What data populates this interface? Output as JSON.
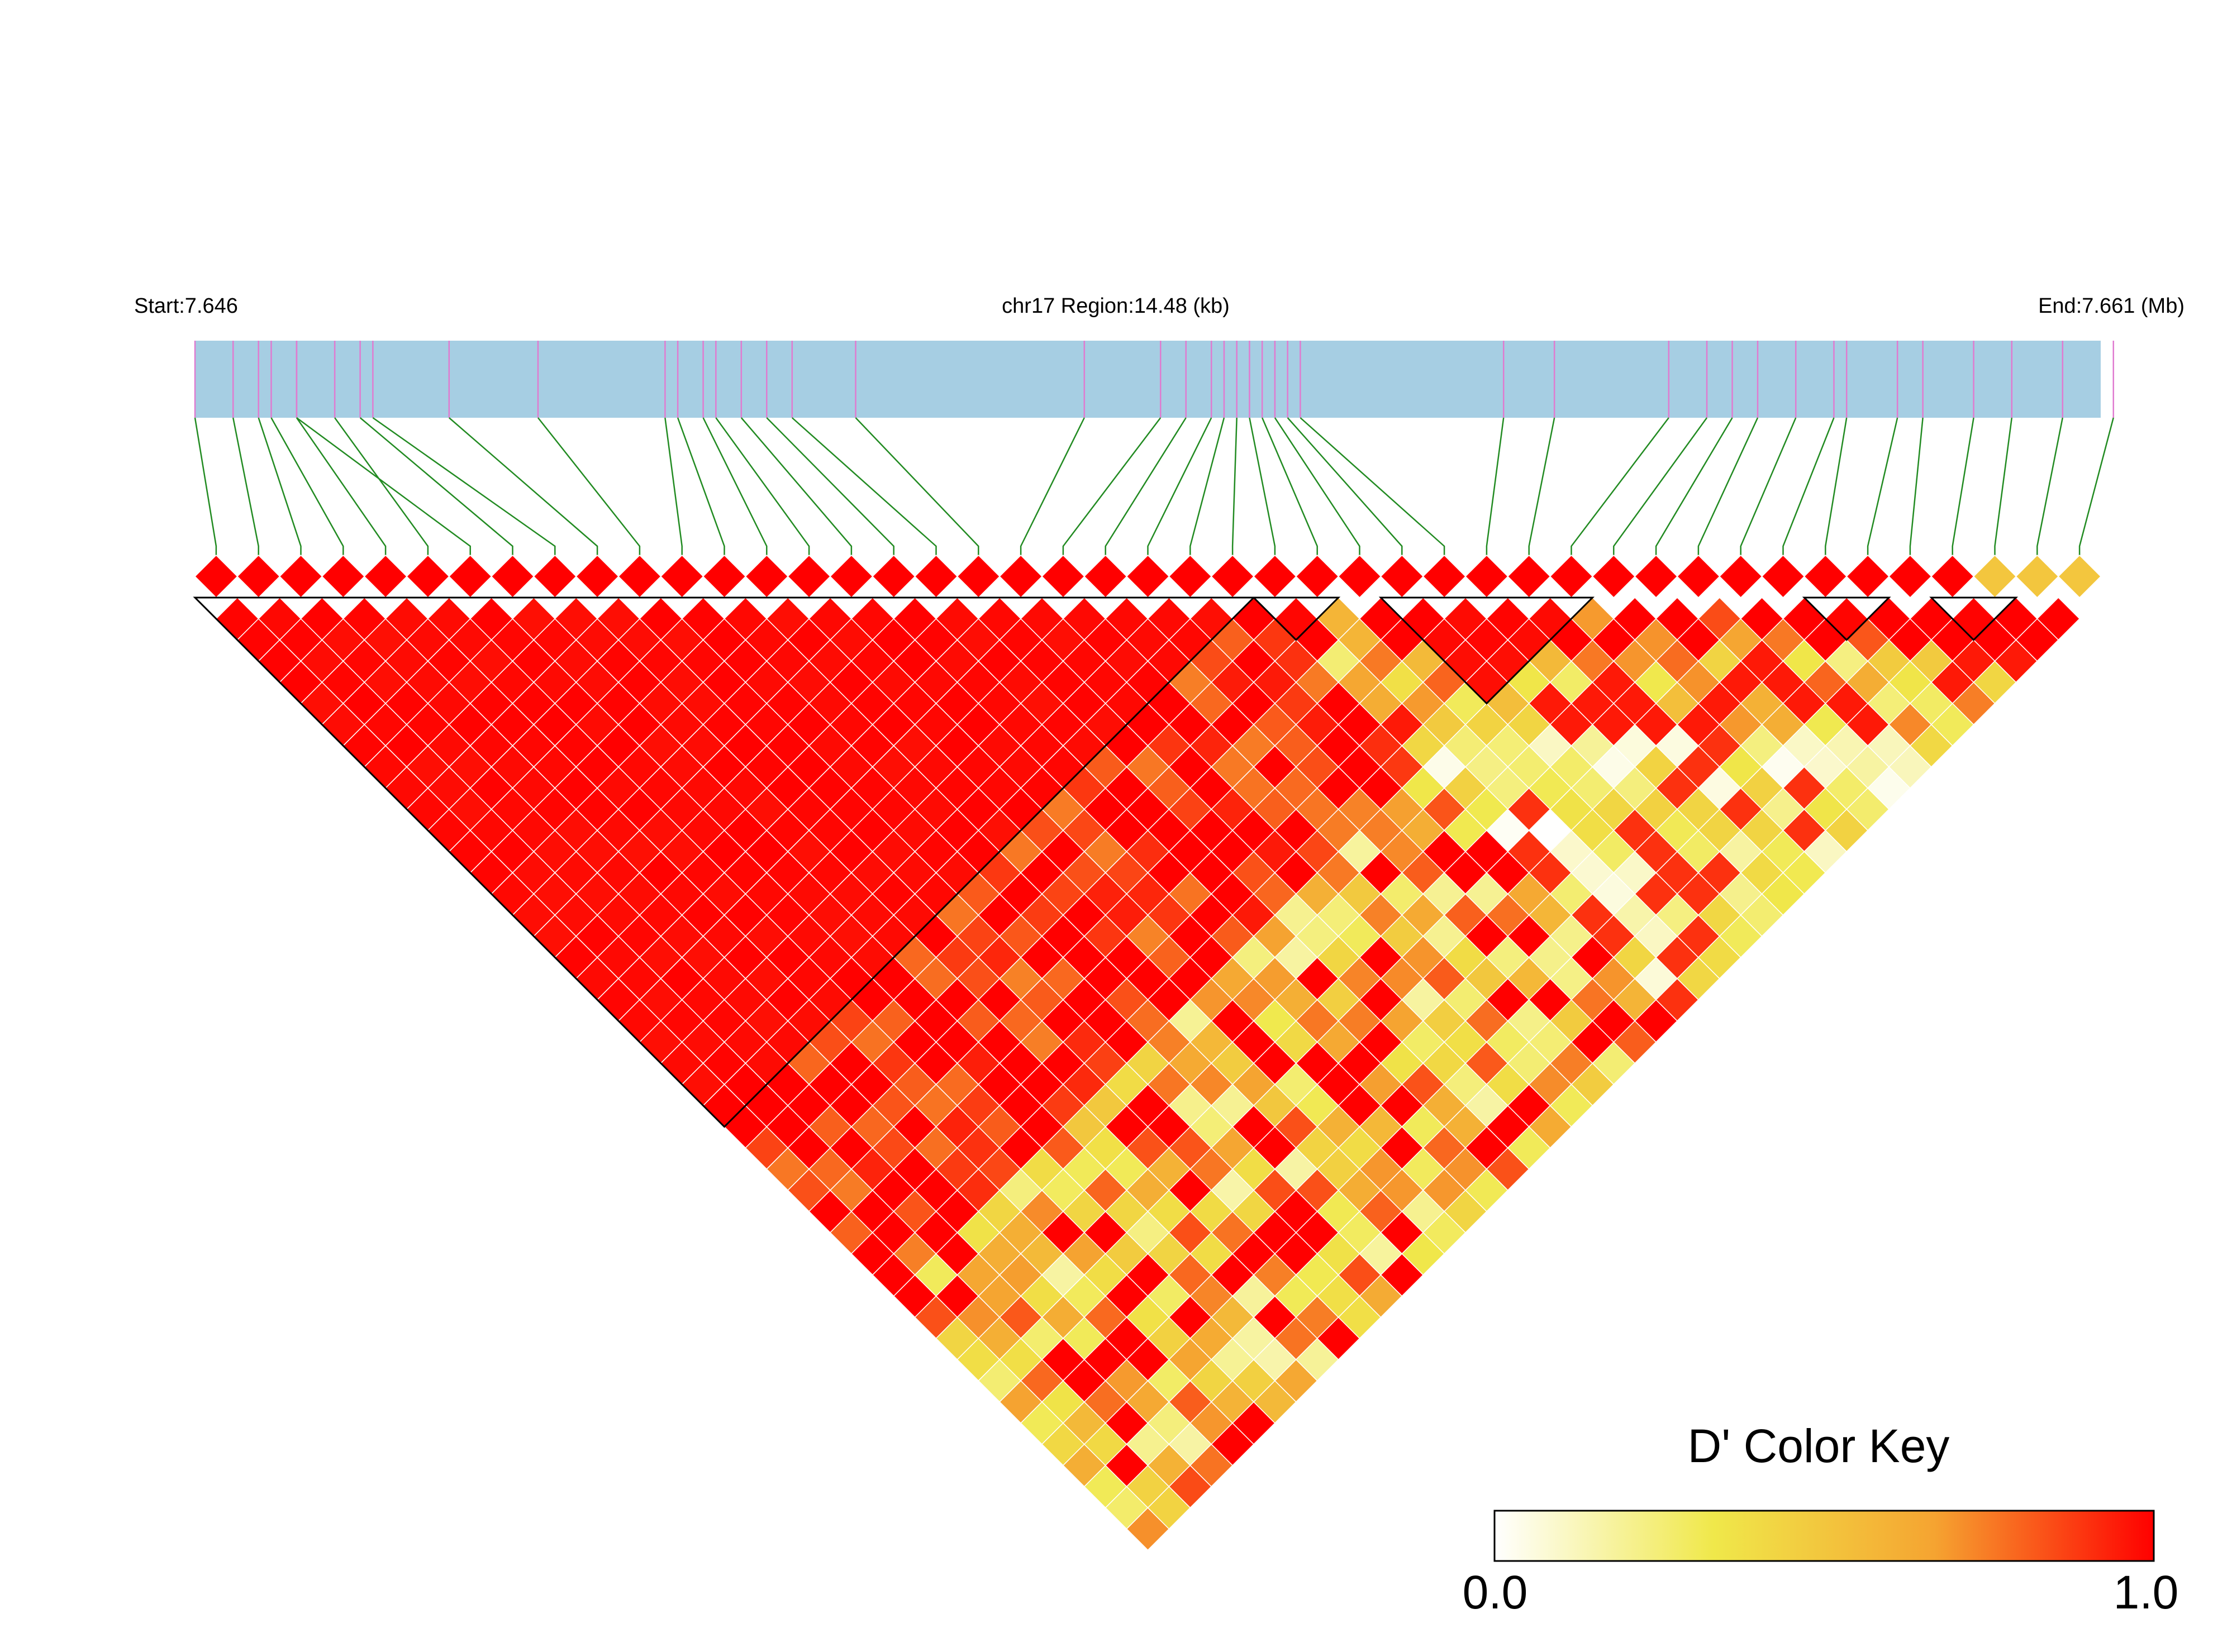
{
  "chart_data": {
    "type": "heatmap",
    "title": "",
    "region": {
      "start_label": "Start:7.646",
      "center_label": "chr17 Region:14.48 (kb)",
      "end_label": "End:7.661 (Mb)",
      "start_mb": 7.646,
      "end_mb": 7.661,
      "length_kb": 14.48
    },
    "snp_count": 45,
    "snp_positions_mb": [
      7.646,
      7.6463,
      7.6465,
      7.6466,
      7.6468,
      7.6471,
      7.6468,
      7.6473,
      7.6474,
      7.648,
      7.6487,
      7.6497,
      7.6498,
      7.65,
      7.6501,
      7.6503,
      7.6505,
      7.6507,
      7.6512,
      7.653,
      7.6536,
      7.6538,
      7.654,
      7.6541,
      7.6542,
      7.6543,
      7.6544,
      7.6545,
      7.6546,
      7.6547,
      7.6563,
      7.6567,
      7.6576,
      7.6579,
      7.6581,
      7.6583,
      7.6586,
      7.6589,
      7.659,
      7.6594,
      7.6596,
      7.66,
      7.6603,
      7.6607,
      7.6611
    ],
    "d_prime_matrix": "generated",
    "blocks": [
      {
        "first_snp": 1,
        "last_snp": 25
      },
      {
        "first_snp": 26,
        "last_snp": 27
      },
      {
        "first_snp": 29,
        "last_snp": 33
      },
      {
        "first_snp": 39,
        "last_snp": 40
      },
      {
        "first_snp": 42,
        "last_snp": 43
      }
    ],
    "color_key": {
      "title": "D' Color Key",
      "min_label": "0.0",
      "max_label": "1.0",
      "min": 0.0,
      "max": 1.0,
      "stops": [
        "#ffffff",
        "#f0e84a",
        "#f5a431",
        "#ff0000"
      ]
    },
    "colors": {
      "track_fill": "#a6cee3",
      "snp_tick": "#e07bd0",
      "connector": "#228b22",
      "cell_border": "#ffffff",
      "block_outline": "#000000"
    }
  }
}
